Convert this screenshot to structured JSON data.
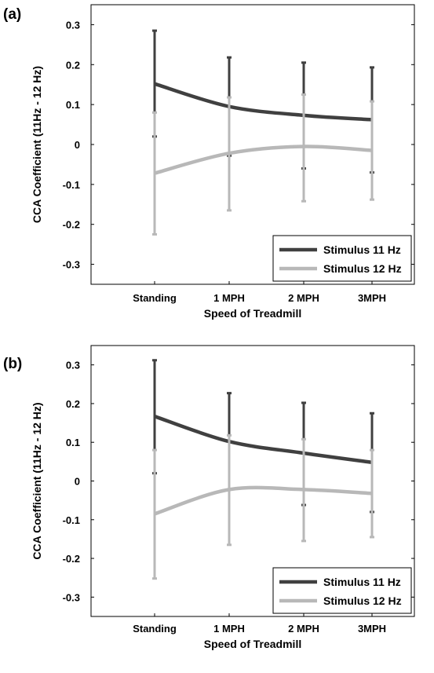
{
  "chart_data": [
    {
      "panel_label": "(a)",
      "type": "line",
      "xlabel": "Speed of Treadmill",
      "ylabel": "CCA Coefficient (11Hz - 12 Hz)",
      "categories": [
        "Standing",
        "1 MPH",
        "2 MPH",
        "3MPH"
      ],
      "ylim": [
        -0.35,
        0.35
      ],
      "yticks": [
        "0.3",
        "0.2",
        "0.1",
        "0",
        "-0.1",
        "-0.2",
        "-0.3"
      ],
      "legend_position": "bottom-right",
      "series": [
        {
          "name": "Stimulus 11 Hz",
          "color": "#404040",
          "values": [
            0.152,
            0.095,
            0.073,
            0.062
          ],
          "err_low": [
            0.02,
            -0.028,
            -0.06,
            -0.07
          ],
          "err_high": [
            0.285,
            0.218,
            0.205,
            0.193
          ]
        },
        {
          "name": "Stimulus 12 Hz",
          "color": "#b8b8b8",
          "values": [
            -0.072,
            -0.022,
            -0.005,
            -0.015
          ],
          "err_low": [
            -0.225,
            -0.165,
            -0.142,
            -0.138
          ],
          "err_high": [
            0.08,
            0.118,
            0.125,
            0.108
          ]
        }
      ]
    },
    {
      "panel_label": "(b)",
      "type": "line",
      "xlabel": "Speed of Treadmill",
      "ylabel": "CCA Coefficient (11Hz - 12 Hz)",
      "categories": [
        "Standing",
        "1 MPH",
        "2 MPH",
        "3MPH"
      ],
      "ylim": [
        -0.35,
        0.35
      ],
      "yticks": [
        "0.3",
        "0.2",
        "0.1",
        "0",
        "-0.1",
        "-0.2",
        "-0.3"
      ],
      "legend_position": "bottom-right",
      "series": [
        {
          "name": "Stimulus 11 Hz",
          "color": "#404040",
          "values": [
            0.167,
            0.102,
            0.072,
            0.048
          ],
          "err_low": [
            0.02,
            -0.022,
            -0.062,
            -0.08
          ],
          "err_high": [
            0.312,
            0.227,
            0.202,
            0.175
          ]
        },
        {
          "name": "Stimulus 12 Hz",
          "color": "#b8b8b8",
          "values": [
            -0.085,
            -0.022,
            -0.022,
            -0.032
          ],
          "err_low": [
            -0.252,
            -0.165,
            -0.155,
            -0.145
          ],
          "err_high": [
            0.08,
            0.118,
            0.108,
            0.08
          ]
        }
      ]
    }
  ]
}
